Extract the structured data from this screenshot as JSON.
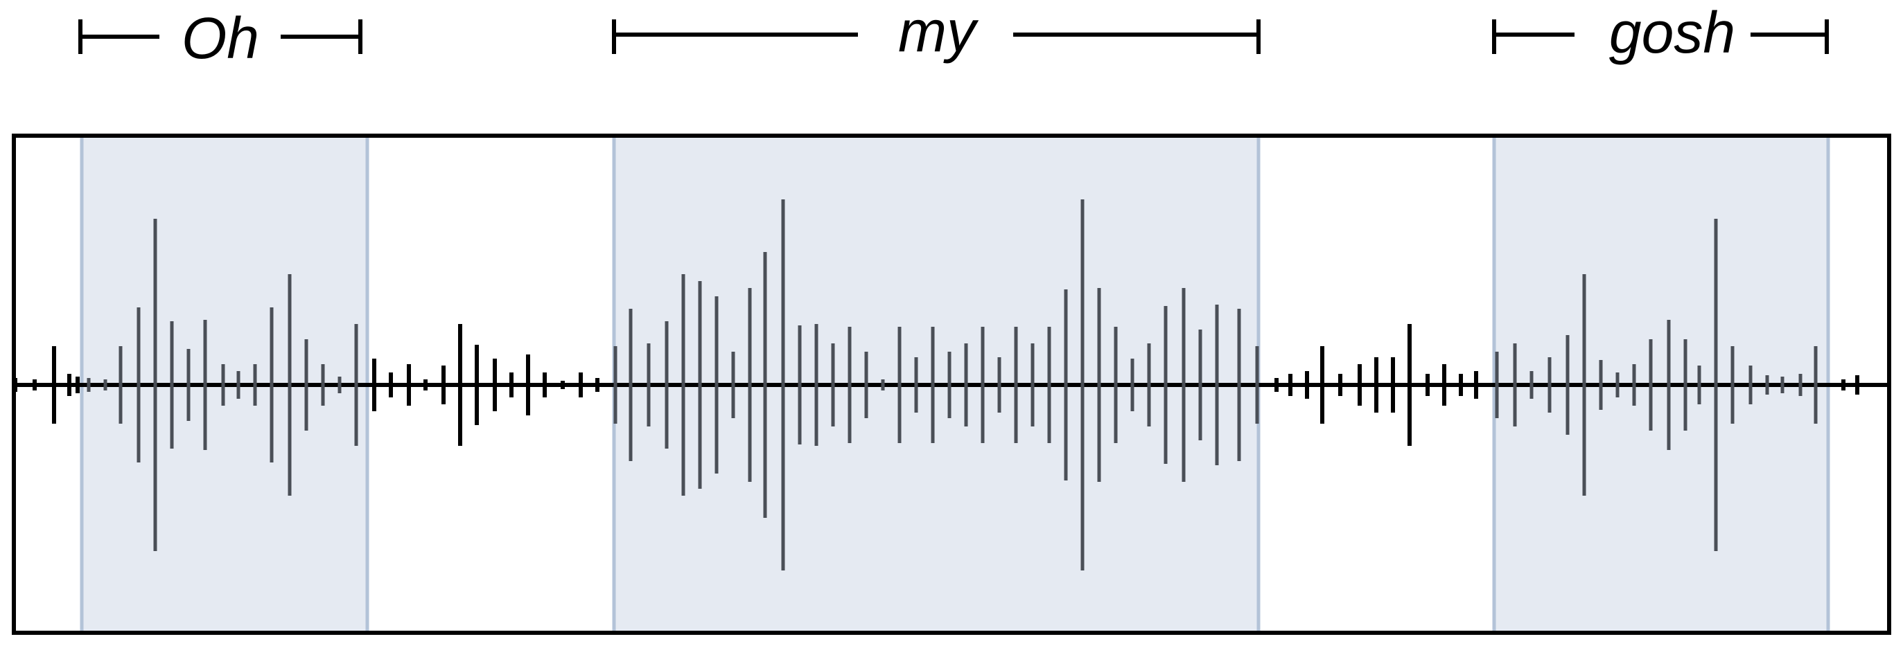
{
  "words": [
    {
      "id": "oh",
      "label": "Oh"
    },
    {
      "id": "my",
      "label": "my"
    },
    {
      "id": "gosh",
      "label": "gosh"
    }
  ],
  "colors": {
    "frame": "#000000",
    "segment_fill": "#e5eaf2",
    "segment_border": "#b3c3d8",
    "waveform_outside": "#000000",
    "waveform_inside": "#4a4f57",
    "bracket": "#000000"
  }
}
